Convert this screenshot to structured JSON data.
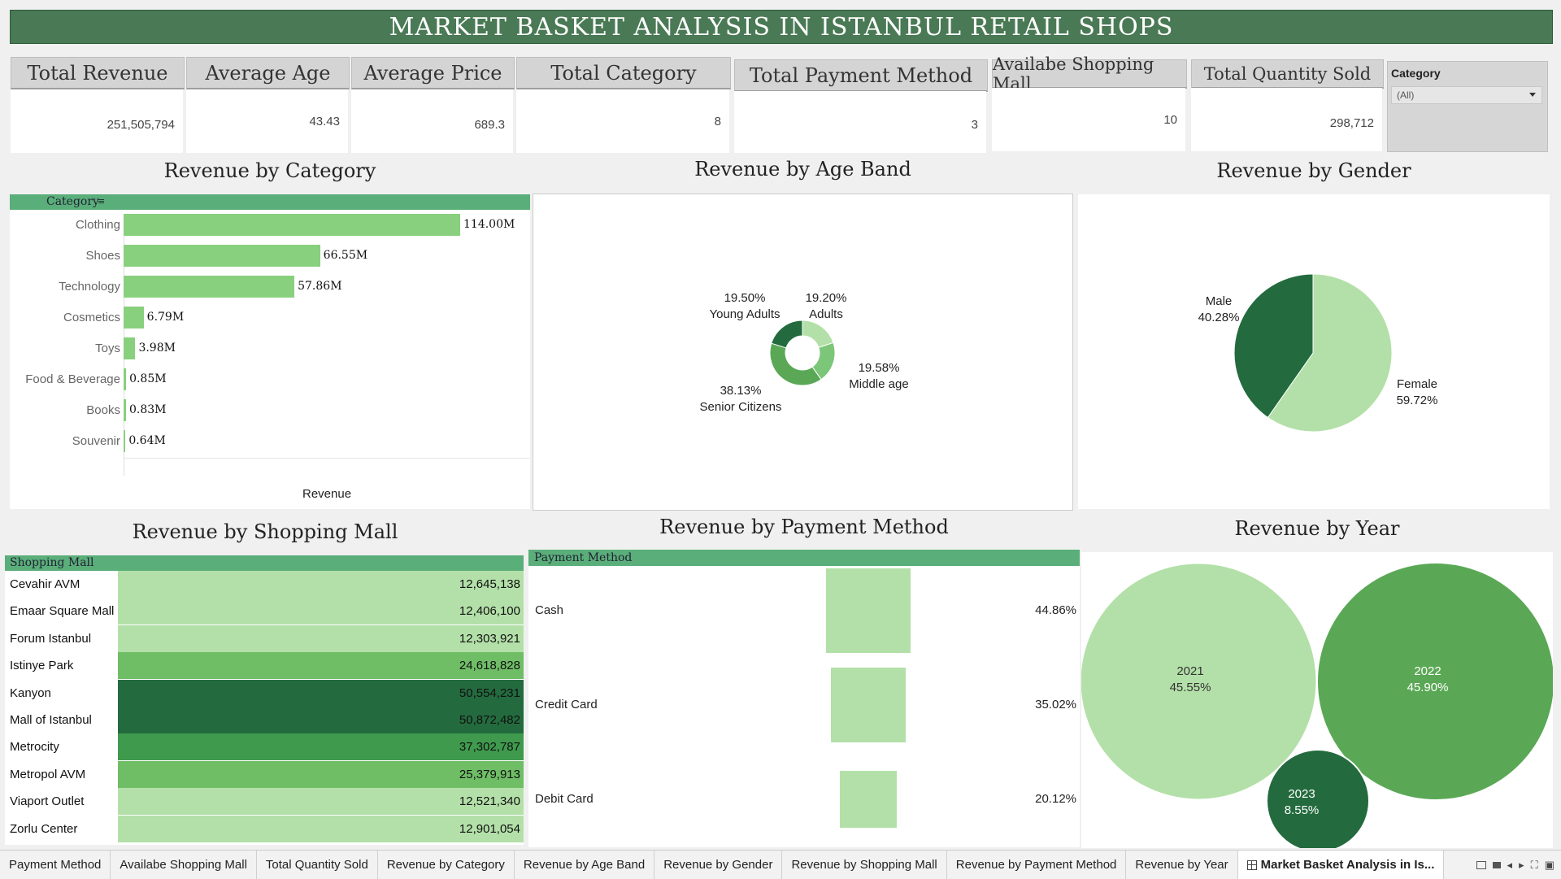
{
  "title": "MARKET BASKET ANALYSIS IN ISTANBUL RETAIL SHOPS",
  "kpis": [
    {
      "label": "Total Revenue",
      "value": "251,505,794"
    },
    {
      "label": "Average Age",
      "value": "43.43"
    },
    {
      "label": "Average Price",
      "value": "689.3"
    },
    {
      "label": "Total Category",
      "value": "8"
    },
    {
      "label": "Total Payment Method",
      "value": "3"
    },
    {
      "label": "Availabe Shopping Mall",
      "value": "10"
    },
    {
      "label": "Total Quantity Sold",
      "value": "298,712"
    }
  ],
  "filter": {
    "label": "Category",
    "selected": "(All)"
  },
  "category_chart": {
    "title": "Revenue by Category",
    "header": "Category",
    "x_label": "Revenue",
    "items": [
      {
        "name": "Clothing",
        "value": 114.0,
        "label": "114.00M"
      },
      {
        "name": "Shoes",
        "value": 66.55,
        "label": "66.55M"
      },
      {
        "name": "Technology",
        "value": 57.86,
        "label": "57.86M"
      },
      {
        "name": "Cosmetics",
        "value": 6.79,
        "label": "6.79M"
      },
      {
        "name": "Toys",
        "value": 3.98,
        "label": "3.98M"
      },
      {
        "name": "Food & Beverage",
        "value": 0.85,
        "label": "0.85M"
      },
      {
        "name": "Books",
        "value": 0.83,
        "label": "0.83M"
      },
      {
        "name": "Souvenir",
        "value": 0.64,
        "label": "0.64M"
      }
    ]
  },
  "age_chart": {
    "title": "Revenue by Age Band",
    "slices": [
      {
        "name": "Adults",
        "pct": "19.20%",
        "value": 19.2,
        "color": "#b3e0a8"
      },
      {
        "name": "Middle age",
        "pct": "19.58%",
        "value": 19.58,
        "color": "#7cc67a"
      },
      {
        "name": "Senior Citizens",
        "pct": "38.13%",
        "value": 38.13,
        "color": "#5aa855"
      },
      {
        "name": "Young Adults",
        "pct": "19.50%",
        "value": 19.5,
        "color": "#236b3e"
      }
    ]
  },
  "gender_chart": {
    "title": "Revenue by Gender",
    "slices": [
      {
        "name": "Female",
        "pct": "59.72%",
        "value": 59.72,
        "color": "#b3e0a8"
      },
      {
        "name": "Male",
        "pct": "40.28%",
        "value": 40.28,
        "color": "#236b3e"
      }
    ]
  },
  "mall_chart": {
    "title": "Revenue by Shopping Mall",
    "header": "Shopping Mall",
    "rows": [
      {
        "name": "Cevahir AVM",
        "value": "12,645,138",
        "color": "#b3e0a8"
      },
      {
        "name": "Emaar Square Mall",
        "value": "12,406,100",
        "color": "#b3e0a8"
      },
      {
        "name": "Forum Istanbul",
        "value": "12,303,921",
        "color": "#b3e0a8"
      },
      {
        "name": "Istinye Park",
        "value": "24,618,828",
        "color": "#6fbe66"
      },
      {
        "name": "Kanyon",
        "value": "50,554,231",
        "color": "#236b3e"
      },
      {
        "name": "Mall of Istanbul",
        "value": "50,872,482",
        "color": "#236b3e"
      },
      {
        "name": "Metrocity",
        "value": "37,302,787",
        "color": "#3f9a4d"
      },
      {
        "name": "Metropol AVM",
        "value": "25,379,913",
        "color": "#6fbe66"
      },
      {
        "name": "Viaport Outlet",
        "value": "12,521,340",
        "color": "#b3e0a8"
      },
      {
        "name": "Zorlu Center",
        "value": "12,901,054",
        "color": "#b3e0a8"
      }
    ]
  },
  "payment_chart": {
    "title": "Revenue by Payment Method",
    "header": "Payment Method",
    "rows": [
      {
        "name": "Cash",
        "pct": "44.86%",
        "value": 44.86
      },
      {
        "name": "Credit Card",
        "pct": "35.02%",
        "value": 35.02
      },
      {
        "name": "Debit Card",
        "pct": "20.12%",
        "value": 20.12
      }
    ]
  },
  "year_chart": {
    "title": "Revenue by Year",
    "bubbles": [
      {
        "year": "2021",
        "pct": "45.55%",
        "value": 45.55,
        "color": "#b3e0a8"
      },
      {
        "year": "2022",
        "pct": "45.90%",
        "value": 45.9,
        "color": "#5aa855"
      },
      {
        "year": "2023",
        "pct": "8.55%",
        "value": 8.55,
        "color": "#236b3e"
      }
    ]
  },
  "tabs": [
    "Payment Method",
    "Availabe Shopping Mall",
    "Total Quantity Sold",
    "Revenue by Category",
    "Revenue by Age Band",
    "Revenue by Gender",
    "Revenue by Shopping Mall",
    "Revenue by Payment Method",
    "Revenue by Year",
    "Market Basket Analysis in Is..."
  ],
  "active_tab_icon": "dashboard-icon",
  "status_icons": [
    "grid-view-icon",
    "single-view-icon",
    "prev-icon",
    "next-icon",
    "fullscreen-icon",
    "present-icon"
  ]
}
